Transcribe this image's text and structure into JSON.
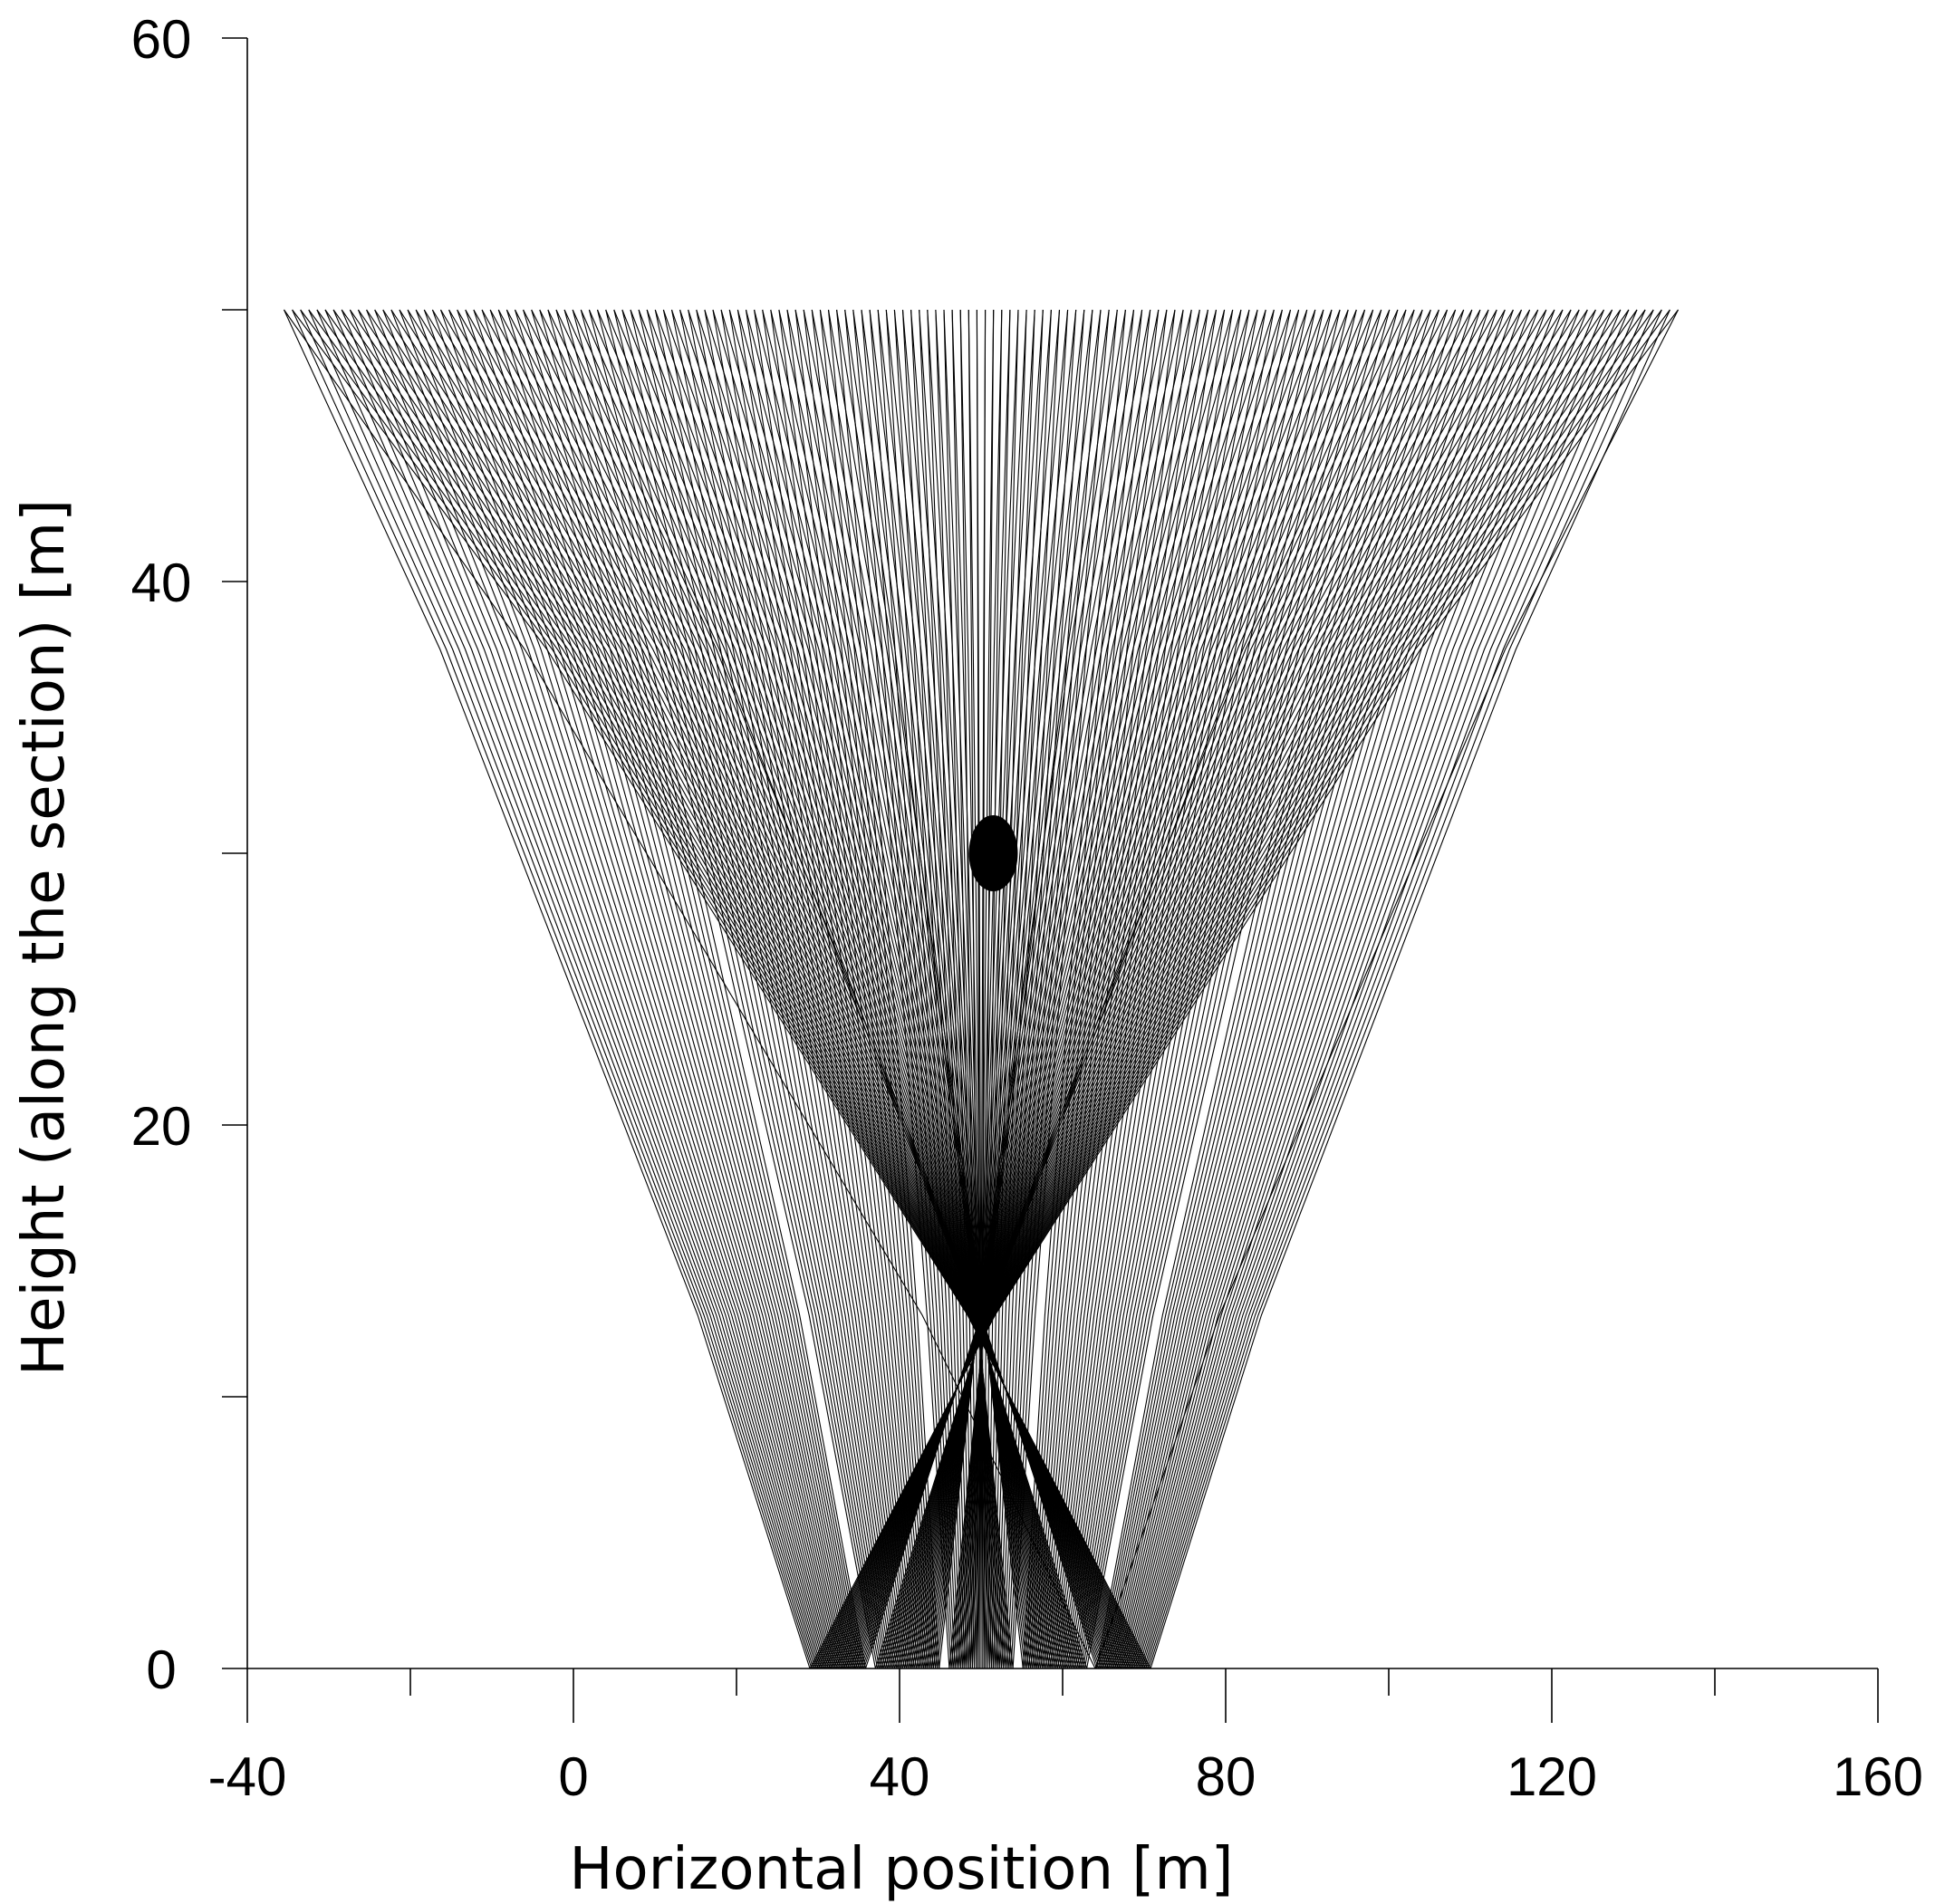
{
  "chart_data": {
    "type": "line",
    "title": "",
    "xlabel": "Horizontal position [m]",
    "ylabel": "Height (along the section) [m]",
    "xlim": [
      -40,
      160
    ],
    "ylim": [
      0,
      60
    ],
    "x_ticks": [
      -40,
      0,
      40,
      80,
      120,
      160
    ],
    "y_ticks": [
      0,
      20,
      40,
      60
    ],
    "x_ticks_minor": [
      -20,
      20,
      60,
      100,
      140
    ],
    "y_ticks_minor": [
      10,
      30,
      50
    ],
    "grid": false,
    "ray_fan": {
      "description_free": true,
      "apex_groups": [
        {
          "x_range": [
            29,
            36
          ],
          "y": 0
        },
        {
          "x_range": [
            37,
            45
          ],
          "y": 0
        },
        {
          "x_range": [
            46,
            54
          ],
          "y": 0
        },
        {
          "x_range": [
            55,
            63
          ],
          "y": 0
        },
        {
          "x_range": [
            64,
            71
          ],
          "y": 0
        }
      ],
      "top_y": 50,
      "top_x_range": [
        -35.5,
        135.5
      ],
      "inflection_heights": [
        13,
        37.5
      ],
      "ray_count": 170
    },
    "marker": {
      "x": 51.5,
      "y": 30,
      "shape": "ellipse",
      "width": 6,
      "height": 2.8
    }
  },
  "colors": {
    "rays": "#000000",
    "axes": "#000000",
    "background": "#ffffff"
  }
}
